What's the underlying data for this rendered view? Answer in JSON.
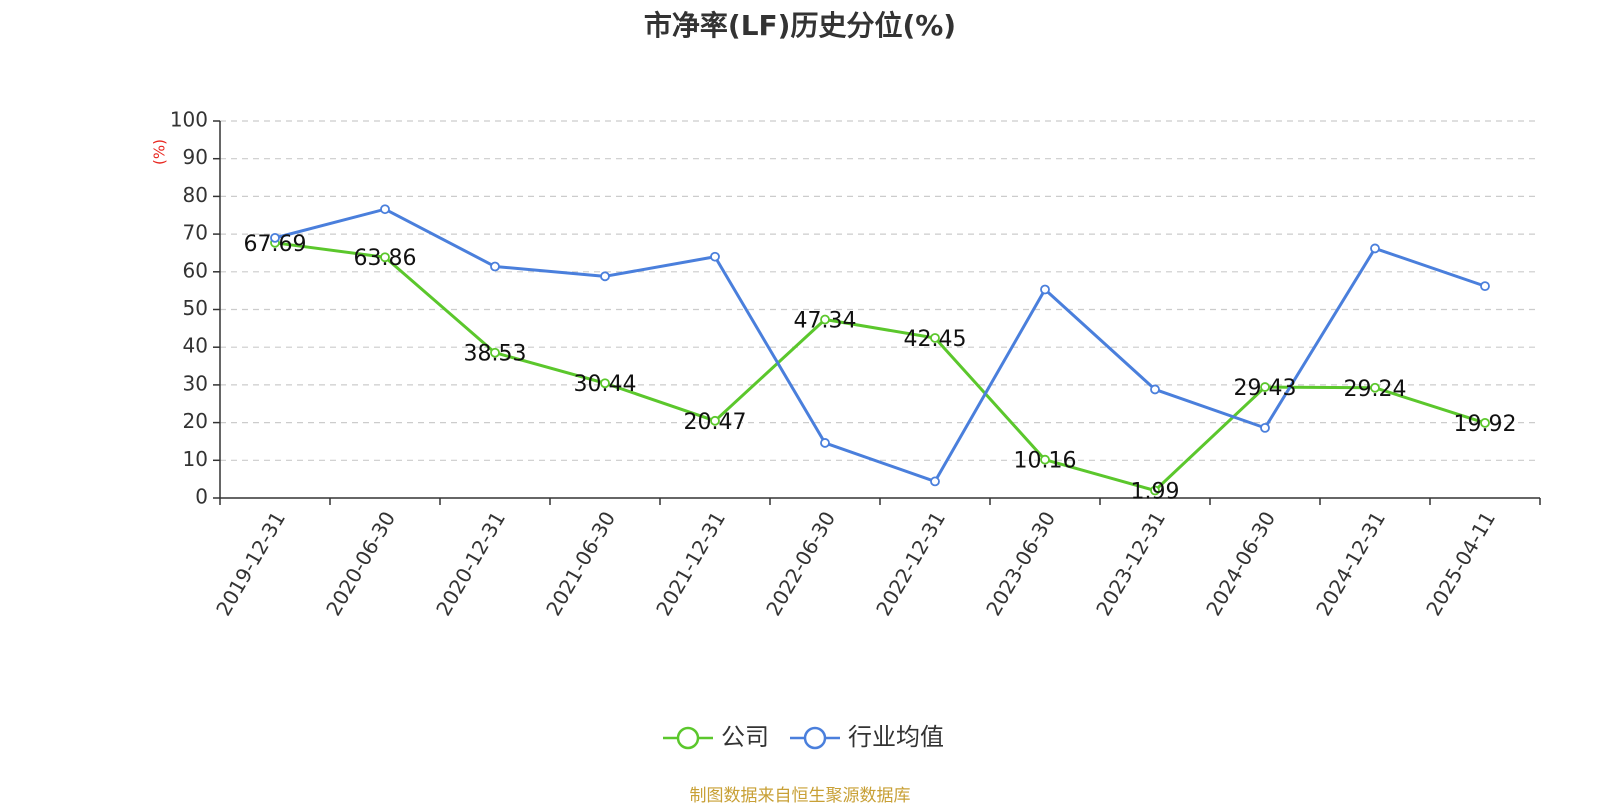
{
  "chart_data": {
    "type": "line",
    "title": "市净率(LF)历史分位(%)",
    "ylabel": "(%)",
    "xlabel": "",
    "ylim": [
      0,
      100
    ],
    "yticks": [
      0,
      10,
      20,
      30,
      40,
      50,
      60,
      70,
      80,
      90,
      100
    ],
    "grid": true,
    "legend_position": "bottom",
    "categories": [
      "2019-12-31",
      "2020-06-30",
      "2020-12-31",
      "2021-06-30",
      "2021-12-31",
      "2022-06-30",
      "2022-12-31",
      "2023-06-30",
      "2023-12-31",
      "2024-06-30",
      "2024-12-31",
      "2025-04-11"
    ],
    "series": [
      {
        "name": "公司",
        "color": "#5bc72c",
        "values": [
          67.69,
          63.86,
          38.53,
          30.44,
          20.47,
          47.34,
          42.45,
          10.16,
          1.99,
          29.43,
          29.24,
          19.92
        ],
        "labels": [
          "67.69",
          "63.86",
          "38.53",
          "30.44",
          "20.47",
          "47.34",
          "42.45",
          "10.16",
          "1.99",
          "29.43",
          "29.24",
          "19.92"
        ]
      },
      {
        "name": "行业均值",
        "color": "#4a7fdc",
        "values": [
          69.0,
          76.6,
          61.4,
          58.8,
          64.0,
          14.6,
          4.4,
          55.3,
          28.8,
          18.6,
          66.2,
          56.2
        ]
      }
    ]
  },
  "source_note": "制图数据来自恒生聚源数据库",
  "colors": {
    "axis": "#333333",
    "grid": "#cccccc",
    "ylabel": "#e8261f",
    "source": "#c8a036"
  }
}
